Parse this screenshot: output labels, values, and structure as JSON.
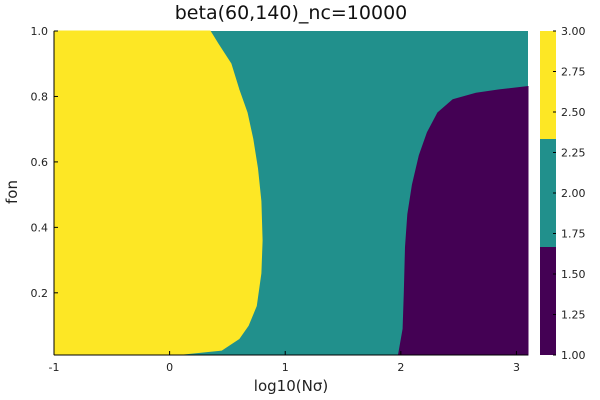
{
  "chart_data": {
    "type": "heatmap",
    "title": "beta(60,140)_nc=10000",
    "xlabel": "log10(Nσ)",
    "ylabel": "fon",
    "xlim": [
      -1,
      3.1
    ],
    "ylim": [
      0.01,
      1.0
    ],
    "x_ticks": [
      "-1",
      "0",
      "1",
      "2",
      "3"
    ],
    "x_tick_values": [
      -1,
      0,
      1,
      2,
      3
    ],
    "y_ticks": [
      "0.2",
      "0.4",
      "0.6",
      "0.8",
      "1.0"
    ],
    "y_tick_values": [
      0.2,
      0.4,
      0.6,
      0.8,
      1.0
    ],
    "grid": false,
    "colorbar": {
      "range": [
        1.0,
        3.0
      ],
      "ticks": [
        "1.00",
        "1.25",
        "1.50",
        "1.75",
        "2.00",
        "2.25",
        "2.50",
        "2.75",
        "3.00"
      ],
      "tick_values": [
        1.0,
        1.25,
        1.5,
        1.75,
        2.0,
        2.25,
        2.5,
        2.75,
        3.0
      ],
      "bands": [
        {
          "from": 1.0,
          "to": 1.6667,
          "color": "#440154"
        },
        {
          "from": 1.6667,
          "to": 2.3333,
          "color": "#21908c"
        },
        {
          "from": 2.3333,
          "to": 3.0,
          "color": "#fde725"
        }
      ]
    },
    "background_level": 2,
    "regions": [
      {
        "level": 3,
        "color": "#fde725",
        "boundary": [
          [
            -1,
            0.01
          ],
          [
            -1,
            1.0
          ],
          [
            0.35,
            1.0
          ],
          [
            0.42,
            0.96
          ],
          [
            0.53,
            0.9
          ],
          [
            0.6,
            0.82
          ],
          [
            0.67,
            0.75
          ],
          [
            0.72,
            0.67
          ],
          [
            0.76,
            0.58
          ],
          [
            0.79,
            0.48
          ],
          [
            0.8,
            0.36
          ],
          [
            0.79,
            0.26
          ],
          [
            0.75,
            0.16
          ],
          [
            0.68,
            0.1
          ],
          [
            0.6,
            0.06
          ],
          [
            0.45,
            0.025
          ],
          [
            0.1,
            0.012
          ],
          [
            0.05,
            0.01
          ]
        ]
      },
      {
        "level": 1,
        "color": "#440154",
        "boundary": [
          [
            1.98,
            0.01
          ],
          [
            2.02,
            0.09
          ],
          [
            2.03,
            0.2
          ],
          [
            2.04,
            0.34
          ],
          [
            2.06,
            0.44
          ],
          [
            2.1,
            0.53
          ],
          [
            2.16,
            0.62
          ],
          [
            2.23,
            0.69
          ],
          [
            2.32,
            0.75
          ],
          [
            2.45,
            0.79
          ],
          [
            2.65,
            0.81
          ],
          [
            2.85,
            0.82
          ],
          [
            3.1,
            0.83
          ],
          [
            3.1,
            0.01
          ]
        ]
      }
    ]
  }
}
